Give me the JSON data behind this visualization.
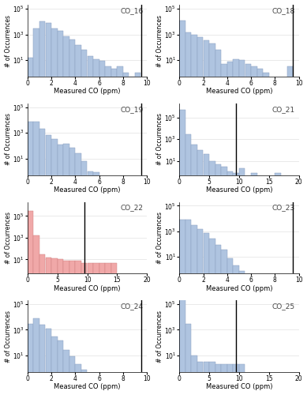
{
  "panels": [
    {
      "label": "CO_16",
      "color": "#afc4e0",
      "edge_color": "#8ba0c0",
      "xlim": [
        0,
        10
      ],
      "bin_width": 0.5,
      "vline": 9.5,
      "xticks": [
        0,
        2,
        4,
        6,
        8,
        10
      ],
      "ylim_top": 200000.0,
      "heights": [
        15,
        3000,
        10000,
        8000,
        3000,
        2000,
        700,
        400,
        150,
        60,
        20,
        12,
        8,
        3,
        2,
        3,
        1,
        0.5,
        1,
        0.3
      ]
    },
    {
      "label": "CO_18",
      "color": "#afc4e0",
      "edge_color": "#8ba0c0",
      "xlim": [
        0,
        10
      ],
      "bin_width": 0.5,
      "vline": 9.5,
      "xticks": [
        0,
        2,
        4,
        6,
        8,
        10
      ],
      "ylim_top": 200000.0,
      "heights": [
        12000,
        1500,
        1000,
        700,
        400,
        250,
        70,
        5,
        7,
        12,
        12,
        5,
        3,
        2,
        1,
        1,
        0,
        0,
        3,
        0
      ]
    },
    {
      "label": "CO_19",
      "color": "#afc4e0",
      "edge_color": "#8ba0c0",
      "xlim": [
        0,
        10
      ],
      "bin_width": 0.5,
      "vline": 9.5,
      "xticks": [
        0,
        2,
        4,
        6,
        8,
        10
      ],
      "ylim_top": 200000.0,
      "heights": [
        8000,
        8000,
        2000,
        800,
        400,
        150,
        150,
        80,
        30,
        8,
        1,
        1,
        0.5,
        0,
        0,
        0,
        0,
        0,
        0,
        0
      ]
    },
    {
      "label": "CO_21",
      "color": "#afc4e0",
      "edge_color": "#8ba0c0",
      "xlim": [
        0,
        20
      ],
      "bin_width": 1.0,
      "vline": 9.5,
      "xticks": [
        0,
        5,
        10,
        15,
        20
      ],
      "ylim_top": 2000000.0,
      "heights": [
        500000,
        3000,
        300,
        100,
        50,
        10,
        5,
        3,
        2,
        1,
        2,
        0,
        1,
        0,
        0,
        0,
        1,
        0,
        0,
        0
      ]
    },
    {
      "label": "CO_22",
      "color": "#f0a8a8",
      "edge_color": "#d08080",
      "xlim": [
        0,
        20
      ],
      "bin_width": 1.0,
      "vline": 9.5,
      "xticks": [
        0,
        5,
        10,
        15,
        20
      ],
      "ylim_top": 2000000.0,
      "heights": [
        300000,
        1500,
        30,
        15,
        12,
        10,
        8,
        8,
        7,
        5,
        5,
        5,
        5,
        5,
        5,
        0,
        0,
        0,
        0,
        0
      ]
    },
    {
      "label": "CO_23",
      "color": "#afc4e0",
      "edge_color": "#8ba0c0",
      "xlim": [
        0,
        10
      ],
      "bin_width": 0.5,
      "vline": 9.5,
      "xticks": [
        0,
        2,
        4,
        6,
        8,
        10
      ],
      "ylim_top": 200000.0,
      "heights": [
        8000,
        8000,
        3000,
        1500,
        700,
        300,
        100,
        40,
        10,
        3,
        1,
        0.3,
        0.1,
        0,
        0,
        0,
        0,
        0,
        0,
        0
      ]
    },
    {
      "label": "CO_24",
      "color": "#afc4e0",
      "edge_color": "#8ba0c0",
      "xlim": [
        0,
        10
      ],
      "bin_width": 0.5,
      "vline": 9.5,
      "xticks": [
        0,
        2,
        4,
        6,
        8,
        10
      ],
      "ylim_top": 200000.0,
      "heights": [
        3000,
        8000,
        2500,
        1200,
        300,
        150,
        25,
        8,
        2,
        0.8,
        0,
        0,
        0,
        0,
        0,
        0,
        0,
        0,
        0,
        0
      ]
    },
    {
      "label": "CO_25",
      "color": "#afc4e0",
      "edge_color": "#8ba0c0",
      "xlim": [
        0,
        20
      ],
      "bin_width": 1.0,
      "vline": 9.5,
      "xticks": [
        0,
        5,
        10,
        15,
        20
      ],
      "ylim_top": 200000.0,
      "heights": [
        500000,
        3000,
        10,
        3,
        3,
        3,
        2,
        2,
        2,
        2,
        2,
        0,
        0,
        0,
        0,
        0,
        0,
        0,
        0,
        0
      ]
    }
  ],
  "ylabel": "# of Occurrences",
  "xlabel": "Measured CO (ppm)"
}
